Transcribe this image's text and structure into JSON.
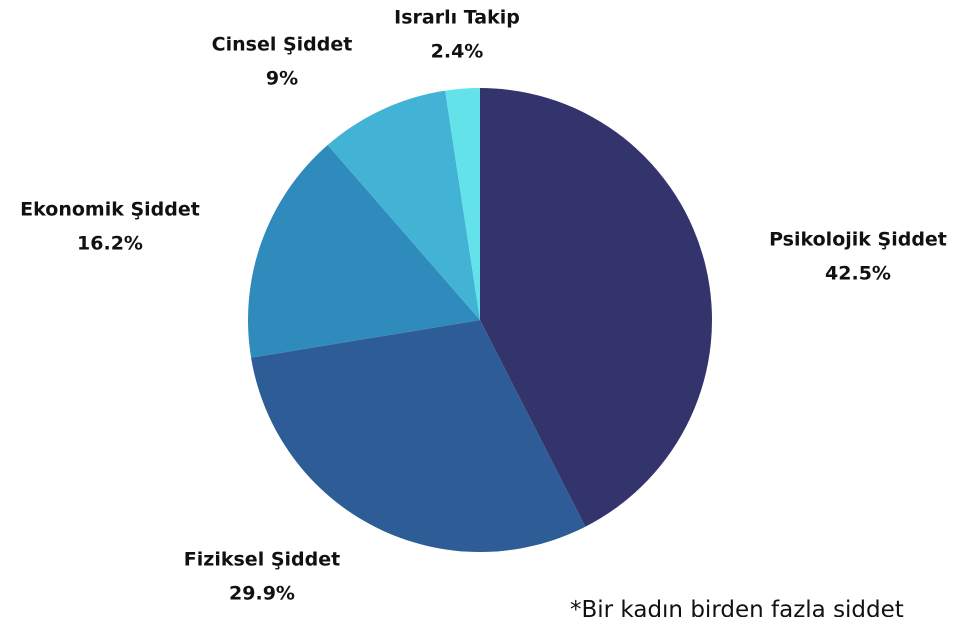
{
  "chart_data": {
    "type": "pie",
    "categories": [
      "Psikolojik Şiddet",
      "Fiziksel Şiddet",
      "Ekonomik Şiddet",
      "Cinsel Şiddet",
      "Israrlı Takip"
    ],
    "values": [
      42.5,
      29.9,
      16.2,
      9,
      2.4
    ],
    "value_labels": [
      "42.5%",
      "29.9%",
      "16.2%",
      "9%",
      "2.4%"
    ],
    "colors": [
      "#32346b",
      "#2e5c96",
      "#2f8bbb",
      "#42b3d5",
      "#64e2ea"
    ],
    "annotation": "*Bir kadın birden fazla şiddet"
  }
}
